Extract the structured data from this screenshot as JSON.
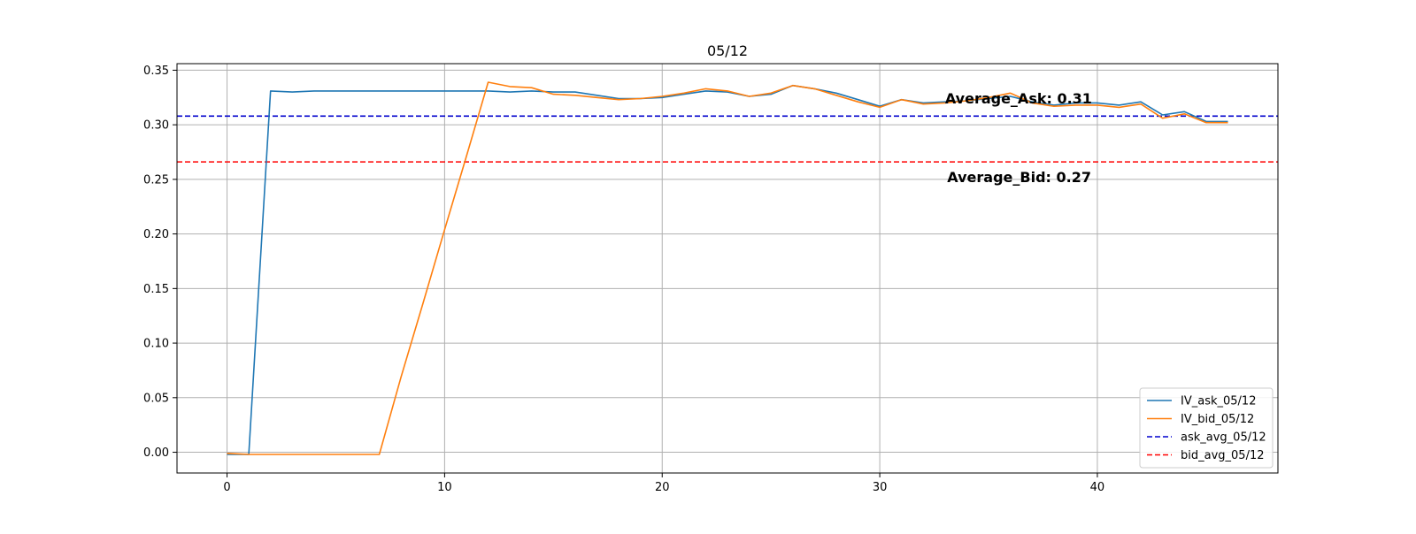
{
  "chart_data": {
    "type": "line",
    "title": "05/12",
    "xlabel": "",
    "ylabel": "",
    "xlim": [
      -2.3,
      48.3
    ],
    "ylim": [
      -0.019,
      0.356
    ],
    "xticks": [
      0,
      10,
      20,
      30,
      40
    ],
    "yticks": [
      0.0,
      0.05,
      0.1,
      0.15,
      0.2,
      0.25,
      0.3,
      0.35
    ],
    "grid": true,
    "legend_position": "lower-right",
    "series": [
      {
        "name": "IV_ask_05/12",
        "style": "solid",
        "color": "#1f77b4",
        "x": [
          0,
          1,
          2,
          3,
          4,
          5,
          6,
          7,
          8,
          9,
          10,
          11,
          12,
          13,
          14,
          15,
          16,
          17,
          18,
          19,
          20,
          21,
          22,
          23,
          24,
          25,
          26,
          27,
          28,
          29,
          30,
          31,
          32,
          33,
          34,
          35,
          36,
          37,
          38,
          39,
          40,
          41,
          42,
          43,
          44,
          45,
          46
        ],
        "values": [
          -0.002,
          -0.002,
          0.331,
          0.33,
          0.331,
          0.331,
          0.331,
          0.331,
          0.331,
          0.331,
          0.331,
          0.331,
          0.331,
          0.33,
          0.331,
          0.33,
          0.33,
          0.327,
          0.324,
          0.324,
          0.325,
          0.328,
          0.331,
          0.33,
          0.326,
          0.328,
          0.336,
          0.333,
          0.329,
          0.323,
          0.317,
          0.323,
          0.32,
          0.321,
          0.322,
          0.324,
          0.326,
          0.321,
          0.318,
          0.32,
          0.32,
          0.318,
          0.321,
          0.309,
          0.312,
          0.303,
          0.303
        ]
      },
      {
        "name": "IV_bid_05/12",
        "style": "solid",
        "color": "#ff7f0e",
        "x": [
          0,
          1,
          2,
          3,
          4,
          5,
          6,
          7,
          8,
          9,
          10,
          11,
          12,
          13,
          14,
          15,
          16,
          17,
          18,
          19,
          20,
          21,
          22,
          23,
          24,
          25,
          26,
          27,
          28,
          29,
          30,
          31,
          32,
          33,
          34,
          35,
          36,
          37,
          38,
          39,
          40,
          41,
          42,
          43,
          44,
          45,
          46
        ],
        "values": [
          -0.001,
          -0.002,
          -0.002,
          -0.002,
          -0.002,
          -0.002,
          -0.002,
          -0.002,
          0.069,
          0.136,
          0.204,
          0.271,
          0.339,
          0.335,
          0.334,
          0.328,
          0.327,
          0.325,
          0.323,
          0.324,
          0.326,
          0.329,
          0.333,
          0.331,
          0.326,
          0.329,
          0.336,
          0.333,
          0.327,
          0.321,
          0.316,
          0.323,
          0.319,
          0.32,
          0.322,
          0.325,
          0.329,
          0.32,
          0.317,
          0.318,
          0.318,
          0.316,
          0.319,
          0.306,
          0.31,
          0.302,
          0.302
        ]
      },
      {
        "name": "ask_avg_05/12",
        "style": "dashed",
        "color": "#0000cd",
        "constant": 0.308
      },
      {
        "name": "bid_avg_05/12",
        "style": "dashed",
        "color": "#ff0000",
        "constant": 0.266
      }
    ],
    "annotations": [
      {
        "text": "Average_Ask: 0.31",
        "x": 33.0,
        "y": 0.3195
      },
      {
        "text": "Average_Bid: 0.27",
        "x": 33.1,
        "y": 0.2475
      }
    ]
  }
}
